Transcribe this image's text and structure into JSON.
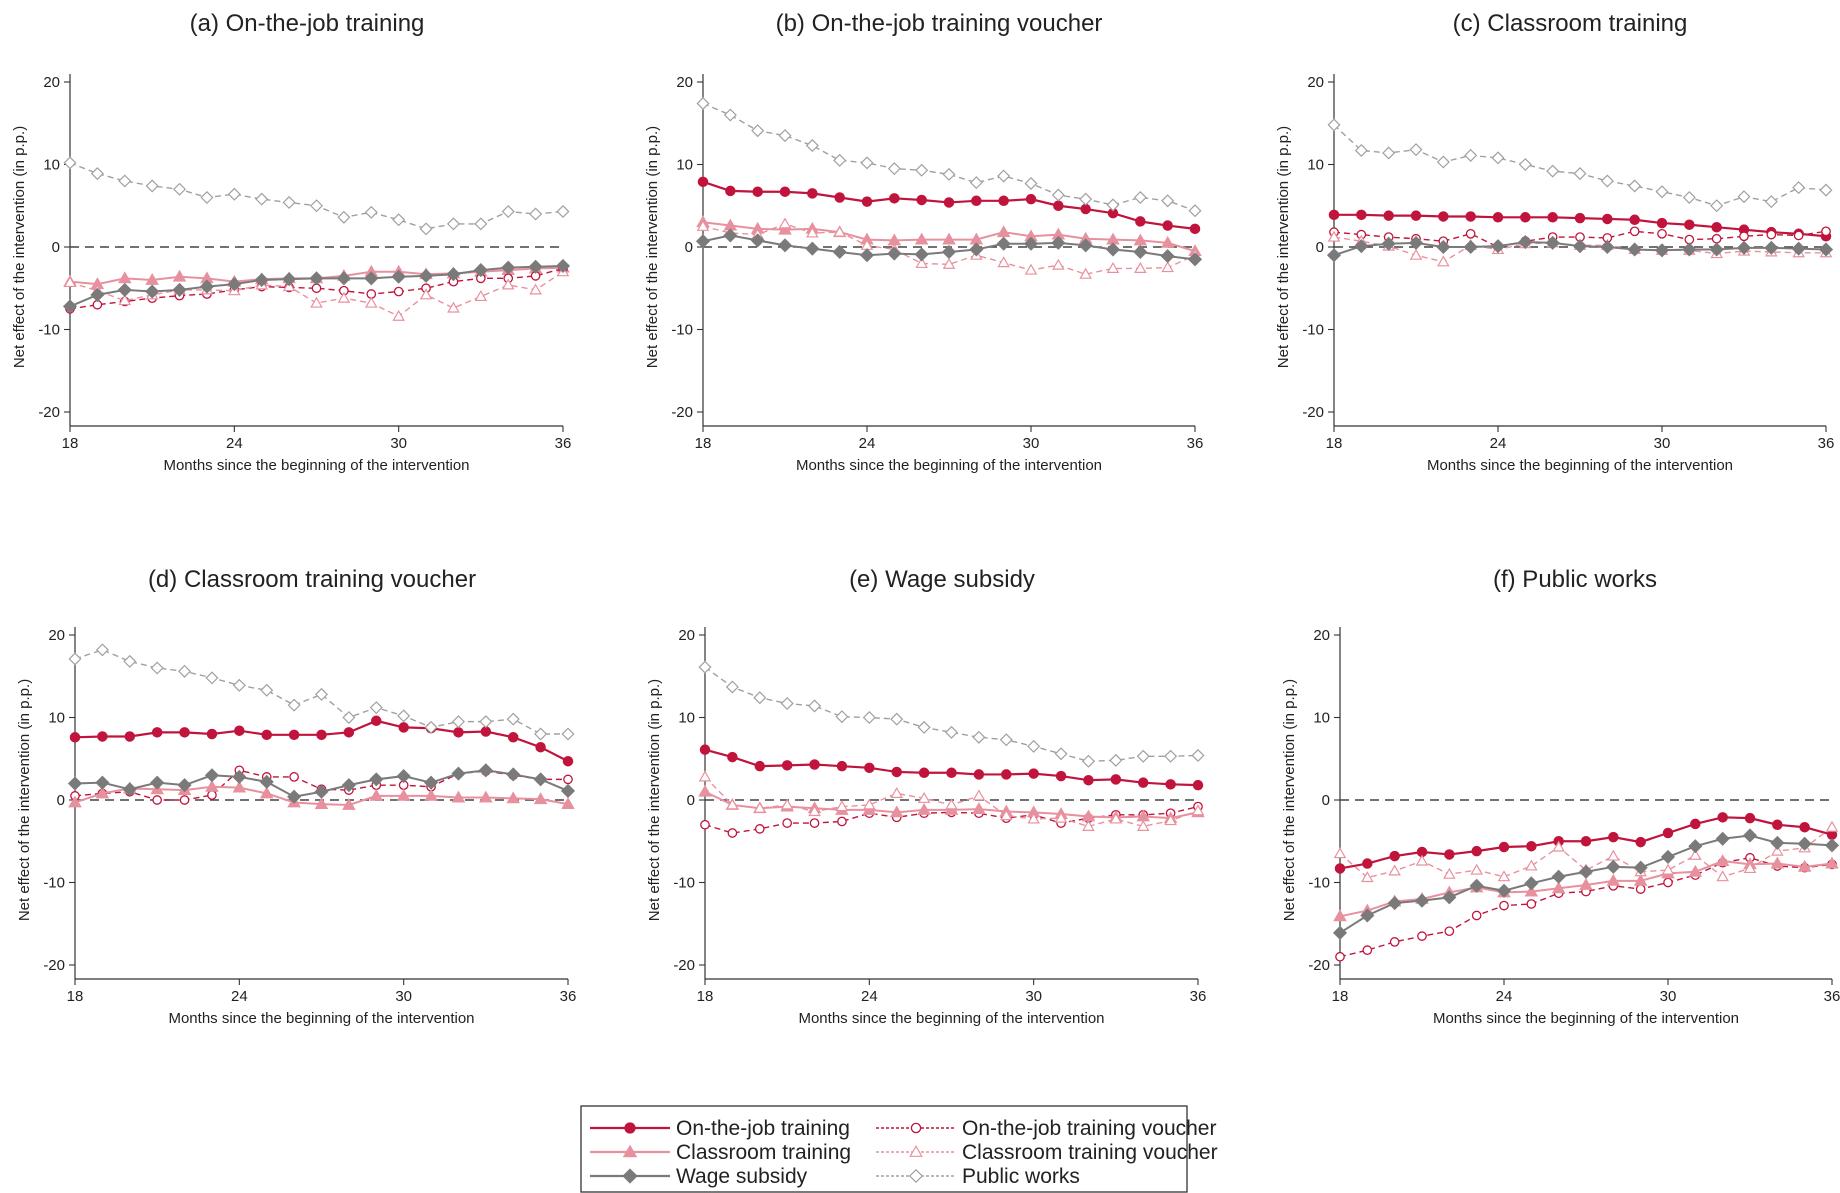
{
  "colors": {
    "ojt": "#c0143c",
    "ojt_voucher": "#c0143c",
    "classroom": "#e8919e",
    "classroom_voucher": "#e8919e",
    "wage_subsidy": "#7a7a7a",
    "public_works": "#a0a0a0"
  },
  "legend": {
    "items": [
      {
        "key": "ojt",
        "label": "On-the-job training"
      },
      {
        "key": "ojt_voucher",
        "label": "On-the-job training voucher"
      },
      {
        "key": "classroom",
        "label": "Classroom training"
      },
      {
        "key": "classroom_voucher",
        "label": "Classroom training voucher"
      },
      {
        "key": "wage_subsidy",
        "label": "Wage subsidy"
      },
      {
        "key": "public_works",
        "label": "Public works"
      }
    ]
  },
  "chart_data": [
    {
      "type": "line",
      "title": "(a) On-the-job training",
      "xlabel": "Months since the beginning of the intervention",
      "ylabel": "Net effect of the intervention (in p.p.)",
      "x": [
        18,
        19,
        20,
        21,
        22,
        23,
        24,
        25,
        26,
        27,
        28,
        29,
        30,
        31,
        32,
        33,
        34,
        35,
        36
      ],
      "xticks": [
        18,
        24,
        30,
        36
      ],
      "yticks": [
        20,
        10,
        0,
        -10,
        -20
      ],
      "ylim": [
        -20,
        20
      ],
      "series": [
        {
          "key": "classroom",
          "name": "Classroom training",
          "values": [
            -4.2,
            -4.5,
            -3.8,
            -4.0,
            -3.6,
            -3.8,
            -4.2,
            -3.9,
            -3.8,
            -3.8,
            -3.5,
            -3.0,
            -3.0,
            -3.3,
            -3.2,
            -3.0,
            -2.8,
            -2.6,
            -2.5
          ]
        },
        {
          "key": "ojt_voucher",
          "name": "On-the-job training voucher",
          "values": [
            -7.5,
            -7.0,
            -6.6,
            -6.2,
            -5.9,
            -5.7,
            -5.2,
            -4.8,
            -4.9,
            -5.0,
            -5.3,
            -5.7,
            -5.4,
            -5.0,
            -4.2,
            -3.8,
            -3.8,
            -3.5,
            -2.6
          ]
        },
        {
          "key": "classroom_voucher",
          "name": "Classroom training voucher",
          "values": [
            -4.3,
            -5.3,
            -6.5,
            -5.8,
            -5.2,
            -5.2,
            -5.3,
            -4.6,
            -4.8,
            -6.8,
            -6.2,
            -6.8,
            -8.4,
            -5.8,
            -7.4,
            -6.0,
            -4.6,
            -5.2,
            -3.0
          ]
        },
        {
          "key": "wage_subsidy",
          "name": "Wage subsidy",
          "values": [
            -7.2,
            -5.8,
            -5.2,
            -5.4,
            -5.2,
            -4.8,
            -4.5,
            -4.0,
            -3.9,
            -3.8,
            -3.8,
            -3.8,
            -3.6,
            -3.5,
            -3.3,
            -2.8,
            -2.5,
            -2.4,
            -2.3
          ]
        },
        {
          "key": "public_works",
          "name": "Public works",
          "values": [
            10.2,
            8.9,
            8.0,
            7.4,
            7.0,
            6.0,
            6.4,
            5.8,
            5.4,
            5.0,
            3.6,
            4.2,
            3.3,
            2.2,
            2.8,
            2.8,
            4.3,
            4.0,
            4.3
          ]
        }
      ]
    },
    {
      "type": "line",
      "title": "(b) On-the-job training voucher",
      "xlabel": "Months since the beginning of the intervention",
      "ylabel": "Net effect of the intervention (in p.p.)",
      "x": [
        18,
        19,
        20,
        21,
        22,
        23,
        24,
        25,
        26,
        27,
        28,
        29,
        30,
        31,
        32,
        33,
        34,
        35,
        36
      ],
      "xticks": [
        18,
        24,
        30,
        36
      ],
      "yticks": [
        20,
        10,
        0,
        -10,
        -20
      ],
      "ylim": [
        -20,
        20
      ],
      "series": [
        {
          "key": "ojt",
          "name": "On-the-job training",
          "values": [
            7.9,
            6.8,
            6.7,
            6.7,
            6.5,
            6.0,
            5.5,
            5.9,
            5.7,
            5.4,
            5.6,
            5.6,
            5.8,
            5.0,
            4.6,
            4.1,
            3.1,
            2.6,
            2.2
          ]
        },
        {
          "key": "classroom",
          "name": "Classroom training",
          "values": [
            3.0,
            2.6,
            2.2,
            2.1,
            2.2,
            1.8,
            0.9,
            0.8,
            0.9,
            0.9,
            0.9,
            1.8,
            1.3,
            1.5,
            1.0,
            0.9,
            0.8,
            0.5,
            -0.5
          ]
        },
        {
          "key": "classroom_voucher",
          "name": "Classroom training voucher",
          "values": [
            2.5,
            1.7,
            1.5,
            2.8,
            1.7,
            1.8,
            0.2,
            -0.3,
            -2.0,
            -2.1,
            -1.0,
            -1.9,
            -2.8,
            -2.2,
            -3.3,
            -2.6,
            -2.6,
            -2.5,
            -1.0
          ]
        },
        {
          "key": "wage_subsidy",
          "name": "Wage subsidy",
          "values": [
            0.7,
            1.4,
            0.8,
            0.2,
            -0.2,
            -0.6,
            -1.0,
            -0.8,
            -0.9,
            -0.6,
            -0.3,
            0.4,
            0.4,
            0.5,
            0.2,
            -0.3,
            -0.6,
            -1.1,
            -1.5
          ]
        },
        {
          "key": "public_works",
          "name": "Public works",
          "values": [
            17.4,
            16.0,
            14.1,
            13.5,
            12.3,
            10.5,
            10.2,
            9.5,
            9.3,
            8.8,
            7.8,
            8.6,
            7.7,
            6.3,
            5.8,
            5.1,
            6.0,
            5.6,
            4.4
          ]
        }
      ]
    },
    {
      "type": "line",
      "title": "(c) Classroom training",
      "xlabel": "Months since the beginning of the intervention",
      "ylabel": "Net effect of the intervention (in p.p.)",
      "x": [
        18,
        19,
        20,
        21,
        22,
        23,
        24,
        25,
        26,
        27,
        28,
        29,
        30,
        31,
        32,
        33,
        34,
        35,
        36
      ],
      "xticks": [
        18,
        24,
        30,
        36
      ],
      "yticks": [
        20,
        10,
        0,
        -10,
        -20
      ],
      "ylim": [
        -20,
        20
      ],
      "series": [
        {
          "key": "ojt",
          "name": "On-the-job training",
          "values": [
            3.9,
            3.9,
            3.8,
            3.8,
            3.7,
            3.7,
            3.6,
            3.6,
            3.6,
            3.5,
            3.4,
            3.3,
            2.9,
            2.7,
            2.4,
            2.1,
            1.8,
            1.6,
            1.3
          ]
        },
        {
          "key": "ojt_voucher",
          "name": "On-the-job training voucher",
          "values": [
            1.8,
            1.5,
            1.2,
            1.0,
            0.7,
            1.6,
            0.0,
            0.7,
            1.2,
            1.2,
            1.1,
            1.9,
            1.6,
            0.9,
            1.0,
            1.3,
            1.5,
            1.4,
            1.9
          ]
        },
        {
          "key": "classroom_voucher",
          "name": "Classroom training voucher",
          "values": [
            1.2,
            0.7,
            0.1,
            -1.0,
            -1.8,
            0.2,
            -0.3,
            0.4,
            0.5,
            0.2,
            0.2,
            -0.3,
            -0.4,
            -0.4,
            -0.8,
            -0.5,
            -0.6,
            -0.7,
            -0.7
          ]
        },
        {
          "key": "wage_subsidy",
          "name": "Wage subsidy",
          "values": [
            -1.0,
            0.1,
            0.4,
            0.5,
            0.0,
            0.0,
            0.1,
            0.6,
            0.5,
            0.1,
            0.0,
            -0.3,
            -0.4,
            -0.3,
            -0.3,
            -0.1,
            -0.1,
            -0.2,
            -0.3
          ]
        },
        {
          "key": "public_works",
          "name": "Public works",
          "values": [
            14.8,
            11.7,
            11.4,
            11.8,
            10.3,
            11.1,
            10.8,
            10.0,
            9.2,
            8.9,
            8.0,
            7.4,
            6.7,
            6.0,
            5.0,
            6.1,
            5.5,
            7.2,
            6.9
          ]
        }
      ]
    },
    {
      "type": "line",
      "title": "(d) Classroom training voucher",
      "xlabel": "Months since the beginning of the intervention",
      "ylabel": "Net effect of the intervention (in p.p.)",
      "x": [
        18,
        19,
        20,
        21,
        22,
        23,
        24,
        25,
        26,
        27,
        28,
        29,
        30,
        31,
        32,
        33,
        34,
        35,
        36
      ],
      "xticks": [
        18,
        24,
        30,
        36
      ],
      "yticks": [
        20,
        10,
        0,
        -10,
        -20
      ],
      "ylim": [
        -20,
        20
      ],
      "series": [
        {
          "key": "ojt",
          "name": "On-the-job training",
          "values": [
            7.6,
            7.7,
            7.7,
            8.2,
            8.2,
            8.0,
            8.4,
            7.9,
            7.9,
            7.9,
            8.2,
            9.6,
            8.8,
            8.7,
            8.2,
            8.3,
            7.6,
            6.4,
            4.7
          ]
        },
        {
          "key": "ojt_voucher",
          "name": "On-the-job training voucher",
          "values": [
            0.5,
            0.8,
            1.0,
            0.0,
            0.0,
            0.6,
            3.6,
            2.8,
            2.8,
            1.3,
            1.2,
            1.8,
            1.8,
            1.6,
            3.2,
            3.5,
            3.0,
            2.5,
            2.5
          ]
        },
        {
          "key": "classroom",
          "name": "Classroom training",
          "values": [
            -0.3,
            0.8,
            1.4,
            1.3,
            1.2,
            1.6,
            1.5,
            0.8,
            -0.3,
            -0.5,
            -0.6,
            0.5,
            0.5,
            0.5,
            0.3,
            0.3,
            0.2,
            0.1,
            -0.5
          ]
        },
        {
          "key": "wage_subsidy",
          "name": "Wage subsidy",
          "values": [
            2.0,
            2.1,
            1.3,
            2.1,
            1.8,
            3.0,
            2.8,
            2.2,
            0.4,
            1.0,
            1.8,
            2.5,
            2.9,
            2.1,
            3.2,
            3.6,
            3.1,
            2.5,
            1.1
          ]
        },
        {
          "key": "public_works",
          "name": "Public works",
          "values": [
            17.1,
            18.2,
            16.8,
            16.0,
            15.6,
            14.8,
            13.9,
            13.3,
            11.5,
            12.8,
            10.0,
            11.2,
            10.2,
            8.8,
            9.5,
            9.5,
            9.8,
            8.0,
            8.0
          ]
        }
      ]
    },
    {
      "type": "line",
      "title": "(e) Wage subsidy",
      "xlabel": "Months since the beginning of the intervention",
      "ylabel": "Net effect of the intervention (in p.p.)",
      "x": [
        18,
        19,
        20,
        21,
        22,
        23,
        24,
        25,
        26,
        27,
        28,
        29,
        30,
        31,
        32,
        33,
        34,
        35,
        36
      ],
      "xticks": [
        18,
        24,
        30,
        36
      ],
      "yticks": [
        20,
        10,
        0,
        -10,
        -20
      ],
      "ylim": [
        -20,
        20
      ],
      "series": [
        {
          "key": "ojt",
          "name": "On-the-job training",
          "values": [
            6.1,
            5.2,
            4.1,
            4.2,
            4.3,
            4.1,
            3.9,
            3.4,
            3.3,
            3.3,
            3.1,
            3.1,
            3.2,
            2.9,
            2.4,
            2.5,
            2.1,
            1.9,
            1.8
          ]
        },
        {
          "key": "ojt_voucher",
          "name": "On-the-job training voucher",
          "values": [
            -3.0,
            -4.0,
            -3.5,
            -2.8,
            -2.8,
            -2.6,
            -1.6,
            -2.1,
            -1.6,
            -1.5,
            -1.6,
            -2.2,
            -1.8,
            -2.8,
            -2.2,
            -1.8,
            -1.8,
            -1.6,
            -0.8
          ]
        },
        {
          "key": "classroom",
          "name": "Classroom training",
          "values": [
            1.0,
            -0.6,
            -1.0,
            -0.8,
            -1.0,
            -1.2,
            -1.2,
            -1.5,
            -1.2,
            -1.2,
            -1.1,
            -1.4,
            -1.5,
            -1.7,
            -2.0,
            -2.1,
            -2.0,
            -2.2,
            -1.5
          ]
        },
        {
          "key": "classroom_voucher",
          "name": "Classroom training voucher",
          "values": [
            2.8,
            -0.6,
            -1.0,
            -0.6,
            -1.4,
            -0.8,
            -0.6,
            0.8,
            0.2,
            -0.6,
            0.5,
            -1.9,
            -2.3,
            -2.2,
            -3.2,
            -2.3,
            -3.2,
            -2.5,
            -1.3
          ]
        },
        {
          "key": "public_works",
          "name": "Public works",
          "values": [
            16.1,
            13.7,
            12.4,
            11.7,
            11.4,
            10.1,
            10.0,
            9.8,
            8.8,
            8.2,
            7.6,
            7.3,
            6.5,
            5.6,
            4.7,
            4.8,
            5.3,
            5.3,
            5.4
          ]
        }
      ]
    },
    {
      "type": "line",
      "title": "(f) Public works",
      "xlabel": "Months since the beginning of the intervention",
      "ylabel": "Net effect of the intervention (in p.p.)",
      "x": [
        18,
        19,
        20,
        21,
        22,
        23,
        24,
        25,
        26,
        27,
        28,
        29,
        30,
        31,
        32,
        33,
        34,
        35,
        36
      ],
      "xticks": [
        18,
        24,
        30,
        36
      ],
      "yticks": [
        20,
        10,
        0,
        -10,
        -20
      ],
      "ylim": [
        -20,
        20
      ],
      "series": [
        {
          "key": "ojt",
          "name": "On-the-job training",
          "values": [
            -8.3,
            -7.7,
            -6.8,
            -6.3,
            -6.6,
            -6.2,
            -5.7,
            -5.6,
            -5.0,
            -5.0,
            -4.5,
            -5.1,
            -4.0,
            -2.9,
            -2.1,
            -2.2,
            -3.0,
            -3.3,
            -4.2
          ]
        },
        {
          "key": "ojt_voucher",
          "name": "On-the-job training voucher",
          "values": [
            -19.0,
            -18.2,
            -17.2,
            -16.5,
            -15.9,
            -14.0,
            -12.8,
            -12.6,
            -11.3,
            -11.1,
            -10.4,
            -10.8,
            -10.0,
            -9.1,
            -7.6,
            -7.0,
            -8.0,
            -8.2,
            -7.8
          ]
        },
        {
          "key": "classroom",
          "name": "Classroom training",
          "values": [
            -14.1,
            -13.4,
            -12.3,
            -12.0,
            -11.2,
            -10.6,
            -11.2,
            -11.1,
            -10.7,
            -10.3,
            -9.8,
            -9.8,
            -8.9,
            -8.7,
            -7.4,
            -7.8,
            -7.7,
            -8.1,
            -7.7
          ]
        },
        {
          "key": "classroom_voucher",
          "name": "Classroom training voucher",
          "values": [
            -6.5,
            -9.4,
            -8.6,
            -7.4,
            -9.0,
            -8.5,
            -9.3,
            -8.0,
            -5.7,
            -8.5,
            -6.8,
            -8.7,
            -8.5,
            -6.7,
            -9.3,
            -8.3,
            -6.2,
            -5.8,
            -3.3
          ]
        },
        {
          "key": "wage_subsidy",
          "name": "Wage subsidy",
          "values": [
            -16.1,
            -14.0,
            -12.5,
            -12.2,
            -11.8,
            -10.4,
            -11.0,
            -10.1,
            -9.3,
            -8.7,
            -8.1,
            -8.2,
            -6.9,
            -5.6,
            -4.7,
            -4.3,
            -5.2,
            -5.3,
            -5.5
          ]
        }
      ]
    }
  ]
}
